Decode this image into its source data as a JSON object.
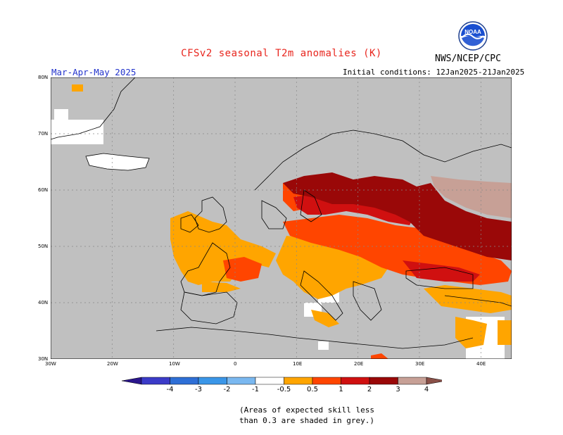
{
  "header": {
    "title": "CFSv2 seasonal T2m anomalies (K)",
    "agency": "NWS/NCEP/CPC",
    "logo_text": "NOAA",
    "period": "Mar-Apr-May 2025",
    "initial_conditions": "Initial conditions: 12Jan2025-21Jan2025"
  },
  "map": {
    "region": "Europe",
    "lat_labels": [
      "80N",
      "70N",
      "60N",
      "50N",
      "40N",
      "30N"
    ],
    "lon_labels": [
      "30W",
      "20W",
      "10W",
      "0",
      "10E",
      "20E",
      "30E",
      "40E"
    ],
    "lat_range": [
      30,
      80
    ],
    "lon_range": [
      -30,
      45
    ],
    "grid": "dotted",
    "ocean_color": "#c0c0c0"
  },
  "legend": {
    "labels": [
      "-4",
      "-3",
      "-2",
      "-1",
      "-0.5",
      "0.5",
      "1",
      "2",
      "3",
      "4"
    ],
    "bins": [
      {
        "range": "< -4",
        "color": "#2a168c"
      },
      {
        "range": "-4 to -3",
        "color": "#3b3bc8"
      },
      {
        "range": "-3 to -2",
        "color": "#2e6fd6"
      },
      {
        "range": "-2 to -1",
        "color": "#3a96e8"
      },
      {
        "range": "-1 to -0.5",
        "color": "#7ab8f0"
      },
      {
        "range": "-0.5 to 0.5",
        "color": "#ffffff"
      },
      {
        "range": "0.5 to 1",
        "color": "#ffa500"
      },
      {
        "range": "1 to 2",
        "color": "#ff4500"
      },
      {
        "range": "2 to 3",
        "color": "#d01010"
      },
      {
        "range": "3 to 4",
        "color": "#9a0808"
      },
      {
        "range": "4 to ...",
        "color": "#c7a096"
      },
      {
        "range": "> ...",
        "color": "#8a5048"
      }
    ]
  },
  "footnote": {
    "line1": "(Areas of expected skill less",
    "line2": "than 0.3 are shaded in grey.)"
  }
}
